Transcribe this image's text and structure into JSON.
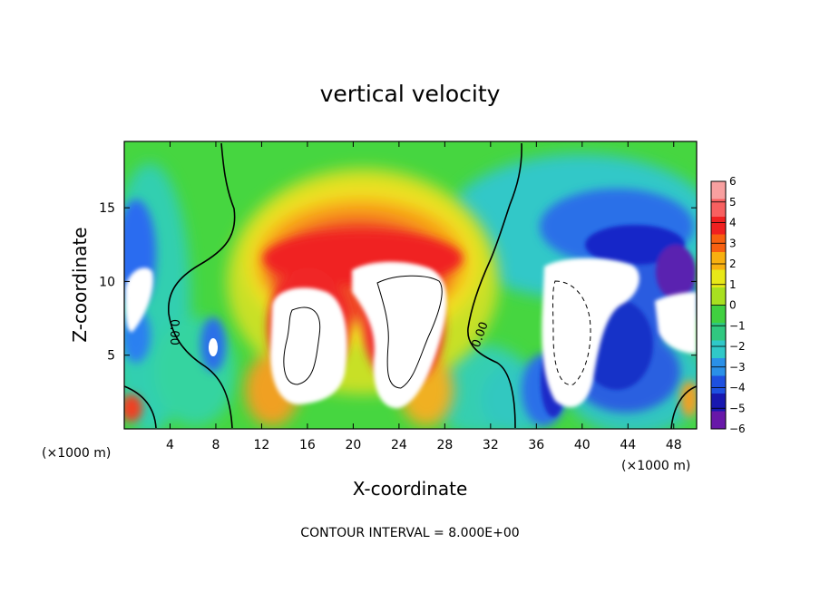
{
  "chart_data": {
    "type": "heatmap",
    "title": "vertical velocity",
    "xlabel": "X-coordinate",
    "ylabel": "Z-coordinate",
    "x_unit": "(×1000 m)",
    "y_unit": "(×1000 m)",
    "xlim": [
      0,
      50
    ],
    "ylim": [
      0,
      19.5
    ],
    "xticks": [
      4,
      8,
      12,
      16,
      20,
      24,
      28,
      32,
      36,
      40,
      44,
      48
    ],
    "yticks": [
      5,
      10,
      15
    ],
    "colorbar": {
      "range": [
        -6,
        6
      ],
      "ticks": [
        6,
        5,
        4,
        3,
        2,
        1,
        0,
        -1,
        -2,
        -3,
        -4,
        -5,
        -6
      ]
    },
    "contour_interval_label": "CONTOUR INTERVAL = 8.000E+00",
    "contour_labels": [
      "0.00",
      "0.00"
    ],
    "note": "field values beyond the colour range are left unfilled (white)"
  }
}
